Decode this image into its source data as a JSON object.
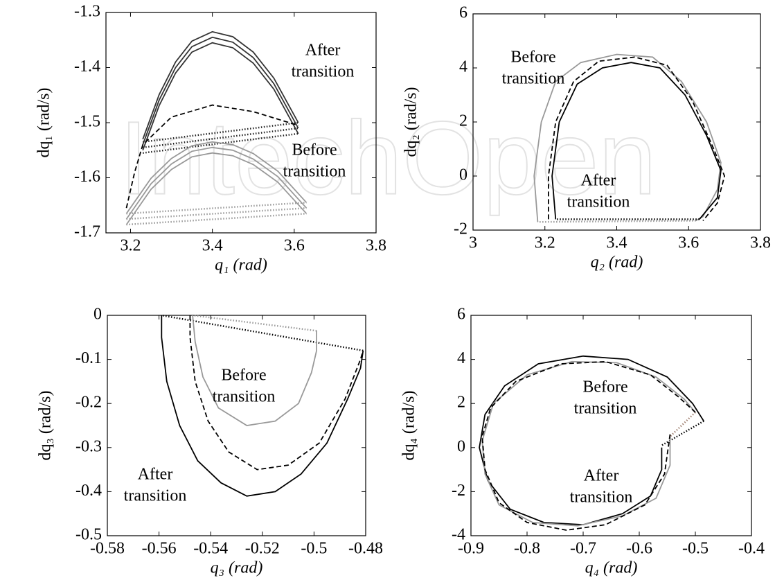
{
  "watermark": "IntechOpen",
  "chart_data": [
    {
      "type": "line",
      "xlabel": "q₁ (rad)",
      "ylabel": "dq₁ (rad/s)",
      "xlim": [
        3.14,
        3.8
      ],
      "ylim": [
        -1.7,
        -1.3
      ],
      "xticks": [
        3.2,
        3.4,
        3.6,
        3.8
      ],
      "yticks": [
        -1.7,
        -1.6,
        -1.5,
        -1.4,
        -1.3
      ],
      "annotations": [
        [
          "After",
          "transition"
        ],
        [
          "Before",
          "transition"
        ]
      ],
      "series": [
        {
          "color": "#333333",
          "style": "solid",
          "x": [
            3.23,
            3.27,
            3.31,
            3.35,
            3.4,
            3.45,
            3.5,
            3.55,
            3.61
          ],
          "values": [
            -1.53,
            -1.449,
            -1.39,
            -1.352,
            -1.335,
            -1.344,
            -1.372,
            -1.419,
            -1.5
          ]
        },
        {
          "color": "#333333",
          "style": "solid",
          "x": [
            3.23,
            3.27,
            3.31,
            3.35,
            3.4,
            3.45,
            3.5,
            3.55,
            3.61
          ],
          "values": [
            -1.54,
            -1.459,
            -1.4,
            -1.362,
            -1.345,
            -1.354,
            -1.382,
            -1.429,
            -1.51
          ]
        },
        {
          "color": "#333333",
          "style": "solid",
          "x": [
            3.23,
            3.27,
            3.31,
            3.35,
            3.4,
            3.45,
            3.5,
            3.55,
            3.61
          ],
          "values": [
            -1.55,
            -1.469,
            -1.41,
            -1.372,
            -1.355,
            -1.364,
            -1.392,
            -1.439,
            -1.52
          ]
        },
        {
          "color": "#222222",
          "style": "dotted",
          "x": [
            3.23,
            3.61
          ],
          "values": [
            -1.535,
            -1.5
          ]
        },
        {
          "color": "#222222",
          "style": "dotted",
          "x": [
            3.23,
            3.61
          ],
          "values": [
            -1.545,
            -1.51
          ]
        },
        {
          "color": "#222222",
          "style": "dotted",
          "x": [
            3.23,
            3.61
          ],
          "values": [
            -1.555,
            -1.52
          ]
        },
        {
          "color": "#000000",
          "style": "dashed",
          "x": [
            3.19,
            3.21,
            3.23,
            3.3,
            3.4,
            3.5,
            3.61
          ],
          "values": [
            -1.655,
            -1.59,
            -1.54,
            -1.49,
            -1.468,
            -1.48,
            -1.505
          ]
        },
        {
          "color": "#999999",
          "style": "solid",
          "x": [
            3.19,
            3.25,
            3.3,
            3.35,
            3.4,
            3.45,
            3.5,
            3.56,
            3.63
          ],
          "values": [
            -1.675,
            -1.611,
            -1.575,
            -1.552,
            -1.545,
            -1.55,
            -1.566,
            -1.598,
            -1.655
          ]
        },
        {
          "color": "#999999",
          "style": "solid",
          "x": [
            3.19,
            3.25,
            3.3,
            3.35,
            3.4,
            3.45,
            3.5,
            3.56,
            3.63
          ],
          "values": [
            -1.665,
            -1.601,
            -1.565,
            -1.542,
            -1.535,
            -1.54,
            -1.556,
            -1.588,
            -1.645
          ]
        },
        {
          "color": "#999999",
          "style": "solid",
          "x": [
            3.19,
            3.25,
            3.3,
            3.35,
            3.4,
            3.45,
            3.5,
            3.56,
            3.63
          ],
          "values": [
            -1.685,
            -1.621,
            -1.585,
            -1.562,
            -1.555,
            -1.56,
            -1.576,
            -1.608,
            -1.665
          ]
        },
        {
          "color": "#999999",
          "style": "dotted",
          "x": [
            3.19,
            3.63
          ],
          "values": [
            -1.665,
            -1.645
          ]
        },
        {
          "color": "#999999",
          "style": "dotted",
          "x": [
            3.19,
            3.63
          ],
          "values": [
            -1.675,
            -1.655
          ]
        },
        {
          "color": "#999999",
          "style": "dotted",
          "x": [
            3.19,
            3.63
          ],
          "values": [
            -1.685,
            -1.665
          ]
        }
      ]
    },
    {
      "type": "line",
      "xlabel": "q₂ (rad)",
      "ylabel": "dq₂ (rad/s)",
      "xlim": [
        3,
        3.8
      ],
      "ylim": [
        -2,
        6
      ],
      "xticks": [
        3,
        3.2,
        3.4,
        3.6,
        3.8
      ],
      "yticks": [
        -2,
        0,
        2,
        4,
        6
      ],
      "annotations": [
        [
          "Before",
          "transition"
        ],
        [
          "After",
          "transition"
        ]
      ],
      "series": [
        {
          "color": "#999999",
          "style": "solid",
          "x": [
            3.18,
            3.17,
            3.19,
            3.23,
            3.3,
            3.4,
            3.5,
            3.58,
            3.65,
            3.69,
            3.68,
            3.64,
            3.62
          ],
          "values": [
            -1.7,
            0,
            2,
            3.5,
            4.2,
            4.5,
            4.4,
            3.5,
            2,
            0.5,
            -0.5,
            -1.5,
            -1.65
          ]
        },
        {
          "color": "#999999",
          "style": "dotted",
          "x": [
            3.62,
            3.18
          ],
          "values": [
            -1.65,
            -1.7
          ]
        },
        {
          "color": "#000000",
          "style": "solid",
          "x": [
            3.23,
            3.22,
            3.24,
            3.29,
            3.36,
            3.44,
            3.52,
            3.59,
            3.65,
            3.69,
            3.68,
            3.63
          ],
          "values": [
            -1.6,
            0,
            2,
            3.4,
            4.0,
            4.2,
            4.0,
            3.0,
            1.5,
            0.2,
            -0.8,
            -1.6
          ]
        },
        {
          "color": "#000000",
          "style": "dotted",
          "x": [
            3.63,
            3.23
          ],
          "values": [
            -1.6,
            -1.6
          ]
        },
        {
          "color": "#000000",
          "style": "dashed",
          "x": [
            3.21,
            3.21,
            3.23,
            3.28,
            3.35,
            3.45,
            3.54,
            3.61,
            3.67,
            3.7,
            3.68,
            3.64
          ],
          "values": [
            -1.6,
            0,
            2,
            3.5,
            4.25,
            4.4,
            4.1,
            2.8,
            1,
            0,
            -1,
            -1.65
          ]
        }
      ]
    },
    {
      "type": "line",
      "xlabel": "q₃ (rad)",
      "ylabel": "dq₃ (rad/s)",
      "xlim": [
        -0.58,
        -0.48
      ],
      "ylim": [
        -0.5,
        0
      ],
      "xticks": [
        -0.58,
        -0.56,
        -0.54,
        -0.52,
        -0.5,
        -0.48
      ],
      "yticks": [
        -0.5,
        -0.4,
        -0.3,
        -0.2,
        -0.1,
        0
      ],
      "annotations": [
        [
          "Before",
          "transition"
        ],
        [
          "After",
          "transition"
        ]
      ],
      "series": [
        {
          "color": "#000000",
          "style": "solid",
          "x": [
            -0.559,
            -0.559,
            -0.557,
            -0.552,
            -0.545,
            -0.536,
            -0.526,
            -0.515,
            -0.505,
            -0.495,
            -0.487,
            -0.482,
            -0.481
          ],
          "values": [
            0,
            -0.05,
            -0.15,
            -0.25,
            -0.33,
            -0.38,
            -0.41,
            -0.4,
            -0.36,
            -0.29,
            -0.19,
            -0.12,
            -0.08
          ]
        },
        {
          "color": "#000000",
          "style": "dotted",
          "x": [
            -0.481,
            -0.559
          ],
          "values": [
            -0.08,
            0
          ]
        },
        {
          "color": "#000000",
          "style": "dashed",
          "x": [
            -0.548,
            -0.548,
            -0.546,
            -0.541,
            -0.533,
            -0.522,
            -0.51,
            -0.498,
            -0.488,
            -0.482,
            -0.481
          ],
          "values": [
            0,
            -0.05,
            -0.15,
            -0.24,
            -0.31,
            -0.35,
            -0.34,
            -0.29,
            -0.19,
            -0.1,
            -0.08
          ]
        },
        {
          "color": "#999999",
          "style": "solid",
          "x": [
            -0.547,
            -0.546,
            -0.543,
            -0.537,
            -0.526,
            -0.515,
            -0.506,
            -0.501,
            -0.499,
            -0.499
          ],
          "values": [
            0,
            -0.06,
            -0.14,
            -0.21,
            -0.25,
            -0.24,
            -0.2,
            -0.13,
            -0.08,
            -0.035
          ]
        },
        {
          "color": "#999999",
          "style": "dotted",
          "x": [
            -0.499,
            -0.547
          ],
          "values": [
            -0.035,
            0
          ]
        }
      ]
    },
    {
      "type": "line",
      "xlabel": "q₄ (rad)",
      "ylabel": "dq₄ (rad/s)",
      "xlim": [
        -0.9,
        -0.4
      ],
      "ylim": [
        -4,
        6
      ],
      "xticks": [
        -0.9,
        -0.8,
        -0.7,
        -0.6,
        -0.5,
        -0.4
      ],
      "yticks": [
        -4,
        -2,
        0,
        2,
        4,
        6
      ],
      "annotations": [
        [
          "Before",
          "transition"
        ],
        [
          "After",
          "transition"
        ]
      ],
      "series": [
        {
          "color": "#000000",
          "style": "solid",
          "x": [
            -0.56,
            -0.56,
            -0.58,
            -0.63,
            -0.7,
            -0.77,
            -0.83,
            -0.87,
            -0.885,
            -0.875,
            -0.84,
            -0.78,
            -0.7,
            -0.62,
            -0.55,
            -0.505,
            -0.485
          ],
          "values": [
            0,
            -1,
            -2.2,
            -3.0,
            -3.5,
            -3.4,
            -2.8,
            -1.5,
            0,
            1.5,
            2.8,
            3.8,
            4.15,
            4.0,
            3.2,
            2.0,
            1.2
          ]
        },
        {
          "color": "#000000",
          "style": "dotted",
          "x": [
            -0.485,
            -0.56
          ],
          "values": [
            1.2,
            0.1
          ]
        },
        {
          "color": "#999999",
          "style": "solid",
          "x": [
            -0.545,
            -0.545,
            -0.57,
            -0.63,
            -0.71,
            -0.79,
            -0.85,
            -0.875,
            -0.88,
            -0.86,
            -0.8,
            -0.72,
            -0.64,
            -0.57,
            -0.52,
            -0.5
          ],
          "values": [
            0.5,
            -0.8,
            -2.3,
            -3.1,
            -3.55,
            -3.4,
            -2.6,
            -1.2,
            0.3,
            2,
            3.3,
            3.9,
            3.85,
            3.2,
            2.2,
            1.6
          ]
        },
        {
          "color": "#a08070",
          "style": "dotted",
          "x": [
            -0.5,
            -0.545
          ],
          "values": [
            1.6,
            0.5
          ]
        },
        {
          "color": "#000000",
          "style": "dashed",
          "x": [
            -0.545,
            -0.555,
            -0.59,
            -0.66,
            -0.73,
            -0.8,
            -0.85,
            -0.875,
            -0.88,
            -0.865,
            -0.82,
            -0.74,
            -0.66,
            -0.58,
            -0.53,
            -0.5
          ],
          "values": [
            0.6,
            -1.2,
            -2.6,
            -3.5,
            -3.75,
            -3.4,
            -2.5,
            -1,
            0.5,
            1.8,
            3.0,
            3.8,
            3.9,
            3.3,
            2.3,
            1.6
          ]
        }
      ]
    }
  ]
}
